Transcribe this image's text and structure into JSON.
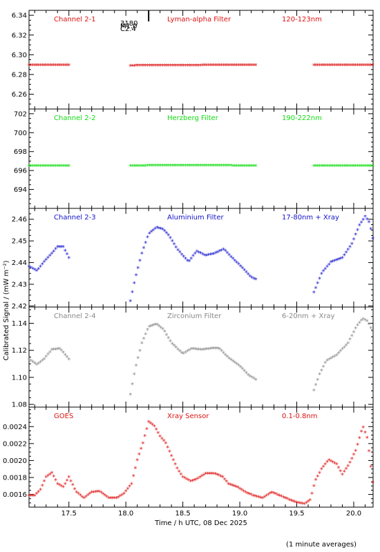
{
  "ylabel_common": "Calibrated Signal / (mW m⁻²)",
  "xlabel": "Time / h UTC, 08 Dec 2025",
  "footnote": "(1 minute averages)",
  "event_marker": {
    "label_lines": [
      "3180",
      "M1.0",
      "C2.4"
    ],
    "x": 18.2
  },
  "x_ticks": [
    17.5,
    18.0,
    18.5,
    19.0,
    19.5,
    20.0
  ],
  "x_tick_labels": [
    "17.5",
    "18.0",
    "18.5",
    "19.0",
    "19.5",
    "20.0"
  ],
  "colors": {
    "red": "#dd1111",
    "green": "#11dd11",
    "blue": "#1111cc",
    "grey": "#888888",
    "black": "#000000"
  },
  "chart_data": [
    {
      "type": "scatter",
      "panel": "Channel 2-1",
      "labels": [
        "Channel 2-1",
        "Lyman-alpha Filter",
        "120-123nm"
      ],
      "color": "#dd1111",
      "xlim": [
        17.15,
        20.17
      ],
      "ylim": [
        6.245,
        6.345
      ],
      "yticks": [
        6.26,
        6.28,
        6.3,
        6.32,
        6.34
      ],
      "ytick_labels": [
        "6.26",
        "6.28",
        "6.30",
        "6.32",
        "6.34"
      ],
      "segments": [
        [
          17.15,
          6.289
        ],
        [
          18.04,
          6.289
        ],
        [
          19.65,
          6.289
        ]
      ],
      "knots": [
        [
          [
            17.15,
            6.289
          ],
          [
            17.5,
            6.2892
          ]
        ],
        [
          [
            18.04,
            6.2885
          ],
          [
            18.5,
            6.2888
          ],
          [
            19.14,
            6.2891
          ]
        ],
        [
          [
            19.65,
            6.289
          ],
          [
            20.17,
            6.289
          ]
        ]
      ]
    },
    {
      "type": "scatter",
      "panel": "Channel 2-2",
      "labels": [
        "Channel 2-2",
        "Herzberg Filter",
        "190-222nm"
      ],
      "color": "#11dd11",
      "xlim": [
        17.15,
        20.17
      ],
      "ylim": [
        692.0,
        702.5
      ],
      "yticks": [
        694,
        696,
        698,
        700,
        702
      ],
      "ytick_labels": [
        "694",
        "696",
        "698",
        "700",
        "702"
      ],
      "knots": [
        [
          [
            17.15,
            696.45
          ],
          [
            17.5,
            696.45
          ]
        ],
        [
          [
            18.04,
            696.45
          ],
          [
            18.5,
            696.5
          ],
          [
            19.14,
            696.45
          ]
        ],
        [
          [
            19.65,
            696.45
          ],
          [
            20.17,
            696.45
          ]
        ]
      ]
    },
    {
      "type": "scatter",
      "panel": "Channel 2-3",
      "labels": [
        "Channel 2-3",
        "Aluminium Filter",
        "17-80nm + Xray"
      ],
      "color": "#1111cc",
      "xlim": [
        17.15,
        20.17
      ],
      "ylim": [
        2.4195,
        2.465
      ],
      "yticks": [
        2.42,
        2.43,
        2.44,
        2.45,
        2.46
      ],
      "ytick_labels": [
        "2.42",
        "2.43",
        "2.44",
        "2.45",
        "2.46"
      ],
      "knots": [
        [
          [
            17.15,
            2.438
          ],
          [
            17.22,
            2.436
          ],
          [
            17.28,
            2.44
          ],
          [
            17.35,
            2.444
          ],
          [
            17.4,
            2.447
          ],
          [
            17.45,
            2.447
          ],
          [
            17.5,
            2.442
          ]
        ],
        [
          [
            18.04,
            2.422
          ],
          [
            18.08,
            2.432
          ],
          [
            18.14,
            2.444
          ],
          [
            18.2,
            2.453
          ],
          [
            18.27,
            2.456
          ],
          [
            18.33,
            2.455
          ],
          [
            18.38,
            2.452
          ],
          [
            18.45,
            2.446
          ],
          [
            18.55,
            2.44
          ],
          [
            18.62,
            2.445
          ],
          [
            18.7,
            2.443
          ],
          [
            18.78,
            2.444
          ],
          [
            18.86,
            2.446
          ],
          [
            18.95,
            2.441
          ],
          [
            19.03,
            2.437
          ],
          [
            19.1,
            2.433
          ],
          [
            19.14,
            2.432
          ]
        ],
        [
          [
            19.65,
            2.426
          ],
          [
            19.72,
            2.435
          ],
          [
            19.8,
            2.44
          ],
          [
            19.9,
            2.442
          ],
          [
            19.98,
            2.448
          ],
          [
            20.05,
            2.457
          ],
          [
            20.1,
            2.461
          ],
          [
            20.14,
            2.458
          ],
          [
            20.17,
            2.45
          ]
        ]
      ]
    },
    {
      "type": "scatter",
      "panel": "Channel 2-4",
      "labels": [
        "Channel 2-4",
        "Zirconium Filter",
        "6-20nm + Xray"
      ],
      "color": "#888888",
      "xlim": [
        17.15,
        20.17
      ],
      "ylim": [
        1.078,
        1.152
      ],
      "yticks": [
        1.08,
        1.1,
        1.12,
        1.14
      ],
      "ytick_labels": [
        "1.08",
        "1.10",
        "1.12",
        "1.14"
      ],
      "knots": [
        [
          [
            17.15,
            1.113
          ],
          [
            17.22,
            1.109
          ],
          [
            17.28,
            1.113
          ],
          [
            17.35,
            1.12
          ],
          [
            17.42,
            1.121
          ],
          [
            17.5,
            1.113
          ]
        ],
        [
          [
            18.04,
            1.087
          ],
          [
            18.08,
            1.105
          ],
          [
            18.14,
            1.125
          ],
          [
            18.2,
            1.137
          ],
          [
            18.27,
            1.139
          ],
          [
            18.33,
            1.135
          ],
          [
            18.4,
            1.125
          ],
          [
            18.5,
            1.117
          ],
          [
            18.58,
            1.121
          ],
          [
            18.66,
            1.12
          ],
          [
            18.75,
            1.121
          ],
          [
            18.82,
            1.121
          ],
          [
            18.9,
            1.114
          ],
          [
            19.0,
            1.108
          ],
          [
            19.08,
            1.101
          ],
          [
            19.14,
            1.098
          ]
        ],
        [
          [
            19.65,
            1.09
          ],
          [
            19.7,
            1.102
          ],
          [
            19.76,
            1.112
          ],
          [
            19.85,
            1.116
          ],
          [
            19.95,
            1.125
          ],
          [
            20.03,
            1.138
          ],
          [
            20.08,
            1.143
          ],
          [
            20.12,
            1.141
          ],
          [
            20.17,
            1.133
          ]
        ]
      ]
    },
    {
      "type": "scatter",
      "panel": "GOES",
      "labels": [
        "GOES",
        "Xray Sensor",
        "0.1-0.8nm"
      ],
      "color": "#dd1111",
      "xlim": [
        17.15,
        20.17
      ],
      "ylim": [
        0.00145,
        0.00263
      ],
      "yticks": [
        0.0016,
        0.0018,
        0.002,
        0.0022,
        0.0024
      ],
      "ytick_labels": [
        "0.0016",
        "0.0018",
        "0.0020",
        "0.0022",
        "0.0024"
      ],
      "knots": [
        [
          [
            17.15,
            0.00158
          ],
          [
            17.2,
            0.00158
          ],
          [
            17.25,
            0.00165
          ],
          [
            17.3,
            0.0018
          ],
          [
            17.35,
            0.00185
          ],
          [
            17.4,
            0.00172
          ],
          [
            17.45,
            0.00168
          ],
          [
            17.5,
            0.0018
          ],
          [
            17.56,
            0.00163
          ],
          [
            17.63,
            0.00155
          ],
          [
            17.7,
            0.00162
          ],
          [
            17.77,
            0.00163
          ],
          [
            17.85,
            0.00155
          ],
          [
            17.92,
            0.00155
          ],
          [
            17.98,
            0.0016
          ],
          [
            18.05,
            0.00172
          ],
          [
            18.1,
            0.002
          ],
          [
            18.15,
            0.0022
          ],
          [
            18.2,
            0.00245
          ],
          [
            18.25,
            0.0024
          ],
          [
            18.3,
            0.00228
          ],
          [
            18.35,
            0.0022
          ],
          [
            18.4,
            0.00205
          ],
          [
            18.45,
            0.0019
          ],
          [
            18.5,
            0.0018
          ],
          [
            18.57,
            0.00175
          ],
          [
            18.63,
            0.00178
          ],
          [
            18.7,
            0.00184
          ],
          [
            18.78,
            0.00184
          ],
          [
            18.85,
            0.0018
          ],
          [
            18.9,
            0.00172
          ],
          [
            18.98,
            0.00168
          ],
          [
            19.05,
            0.00162
          ],
          [
            19.12,
            0.00158
          ],
          [
            19.2,
            0.00155
          ],
          [
            19.28,
            0.00162
          ],
          [
            19.35,
            0.00158
          ],
          [
            19.42,
            0.00154
          ],
          [
            19.5,
            0.0015
          ],
          [
            19.57,
            0.00148
          ],
          [
            19.62,
            0.00153
          ],
          [
            19.66,
            0.00175
          ],
          [
            19.72,
            0.0019
          ],
          [
            19.78,
            0.002
          ],
          [
            19.85,
            0.00195
          ],
          [
            19.9,
            0.00183
          ],
          [
            19.96,
            0.00195
          ],
          [
            20.02,
            0.00212
          ],
          [
            20.08,
            0.0024
          ],
          [
            20.12,
            0.00225
          ],
          [
            20.17,
            0.0017
          ]
        ]
      ]
    }
  ]
}
